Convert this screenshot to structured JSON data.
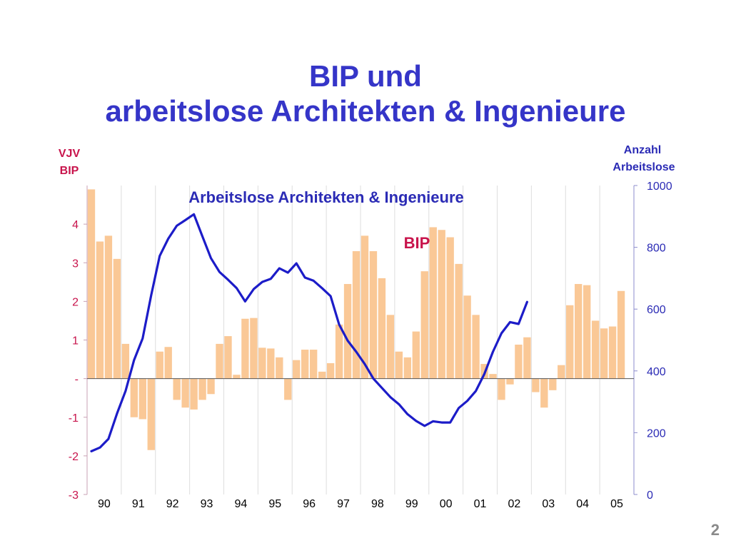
{
  "slide": {
    "title_line1": "BIP und",
    "title_line2": "arbeitslose Architekten & Ingenieure",
    "page_number": "2"
  },
  "chart_data": {
    "type": "bar+line",
    "left_axis": {
      "label_lines": [
        "VJV",
        "BIP"
      ],
      "ticks": [
        {
          "value": -3,
          "label": "-3"
        },
        {
          "value": -2,
          "label": "-2"
        },
        {
          "value": -1,
          "label": "-1"
        },
        {
          "value": 0,
          "label": "-"
        },
        {
          "value": 1,
          "label": "1"
        },
        {
          "value": 2,
          "label": "2"
        },
        {
          "value": 3,
          "label": "3"
        },
        {
          "value": 4,
          "label": "4"
        }
      ],
      "ylim": [
        -3,
        5
      ],
      "color": "#c8144c"
    },
    "right_axis": {
      "label_lines": [
        "Anzahl",
        "Arbeitslose"
      ],
      "ticks": [
        0,
        200,
        400,
        600,
        800,
        1000
      ],
      "ylim": [
        0,
        1000
      ],
      "color": "#2b2bb5"
    },
    "x_axis": {
      "labels": [
        "90",
        "91",
        "92",
        "93",
        "94",
        "95",
        "96",
        "97",
        "98",
        "99",
        "00",
        "01",
        "02",
        "03",
        "04",
        "05"
      ],
      "periods_per_label": 4
    },
    "grid": "vertical",
    "annotations": {
      "line_label": "Arbeitslose Architekten & Ingenieure",
      "bar_label": "BIP"
    },
    "series": [
      {
        "name": "BIP",
        "type": "bar",
        "axis": "left",
        "color": "#fac896",
        "values": [
          4.9,
          3.55,
          3.7,
          3.1,
          0.9,
          -1.0,
          -1.05,
          -1.85,
          0.7,
          0.82,
          -0.55,
          -0.75,
          -0.8,
          -0.55,
          -0.4,
          0.9,
          1.1,
          0.1,
          1.55,
          1.57,
          0.8,
          0.78,
          0.55,
          -0.55,
          0.48,
          0.75,
          0.75,
          0.18,
          0.4,
          1.4,
          2.45,
          3.3,
          3.7,
          3.3,
          2.6,
          1.65,
          0.7,
          0.55,
          1.22,
          2.78,
          3.92,
          3.85,
          3.66,
          2.97,
          2.15,
          1.65,
          0.38,
          0.12,
          -0.55,
          -0.15,
          0.88,
          1.07,
          -0.35,
          -0.75,
          -0.3,
          0.35,
          1.9,
          2.45,
          2.42,
          1.5,
          1.3,
          1.35,
          2.27
        ]
      },
      {
        "name": "Arbeitslose Architekten & Ingenieure",
        "type": "line",
        "axis": "right",
        "color": "#1c1cc8",
        "values": [
          140,
          152,
          180,
          262,
          335,
          435,
          505,
          645,
          772,
          828,
          870,
          888,
          907,
          835,
          765,
          720,
          695,
          668,
          625,
          665,
          688,
          698,
          732,
          718,
          748,
          702,
          692,
          668,
          642,
          550,
          498,
          462,
          422,
          375,
          345,
          315,
          292,
          260,
          238,
          222,
          237,
          233,
          233,
          280,
          303,
          335,
          390,
          462,
          522,
          558,
          552,
          623
        ]
      }
    ]
  }
}
